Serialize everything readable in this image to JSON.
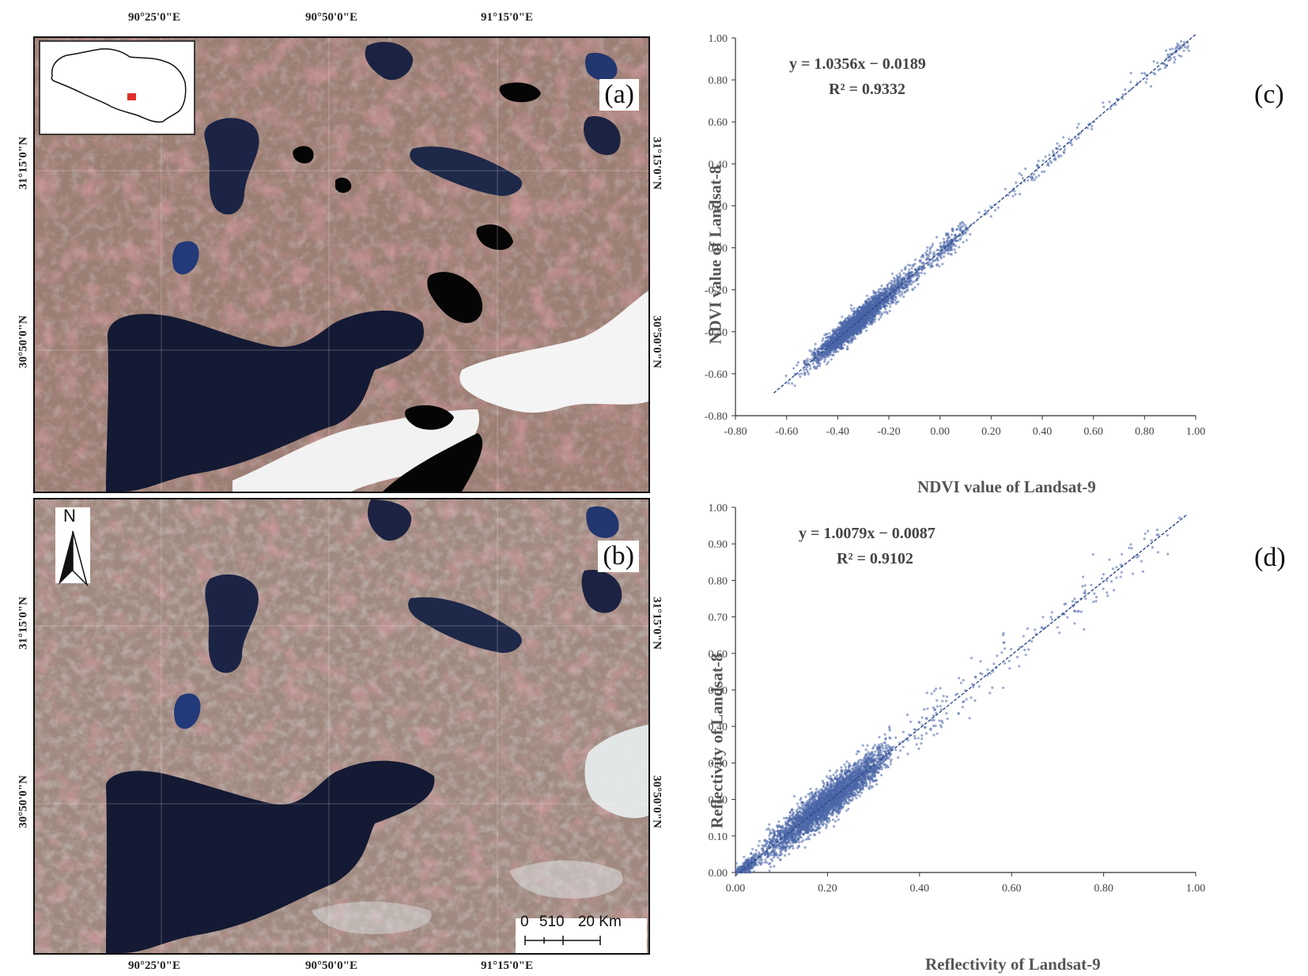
{
  "maps": {
    "top_lon_labels": [
      "90°25'0\"E",
      "90°50'0\"E",
      "91°15'0\"E"
    ],
    "bottom_lon_labels": [
      "90°25'0\"E",
      "90°50'0\"E",
      "91°15'0\"E"
    ],
    "lat_labels_a": [
      "31°15'0\"N",
      "30°50'0\"N"
    ],
    "lat_labels_b": [
      "31°15'0\"N",
      "30°50'0\"N"
    ],
    "panel_a_label": "(a)",
    "panel_b_label": "(b)",
    "north_label": "N",
    "scale_bar": {
      "ticks": [
        "0",
        "5",
        "10",
        "20"
      ],
      "unit": "Km"
    },
    "colors": {
      "water": "#141a33",
      "land": "#9c7f74",
      "vegetation": "#b85a62",
      "cloud": "#f4f4f4",
      "shadow": "#050505",
      "locator_marker": "#e0302a"
    }
  },
  "chart_data": [
    {
      "type": "scatter",
      "panel_label": "(c)",
      "xlabel": "NDVI value  of  Landsat-9",
      "ylabel": "NDVI value  of  Landsat-8",
      "xlim": [
        -0.8,
        1.0
      ],
      "ylim": [
        -0.8,
        1.0
      ],
      "x_ticks": [
        "-0.80",
        "-0.60",
        "-0.40",
        "-0.20",
        "0.00",
        "0.20",
        "0.40",
        "0.60",
        "0.80",
        "1.00"
      ],
      "y_ticks": [
        "-0.80",
        "-0.60",
        "-0.40",
        "-0.20",
        "0.00",
        "0.20",
        "0.40",
        "0.60",
        "0.80",
        "1.00"
      ],
      "equation": "y = 1.0356x − 0.0189",
      "r2": "R² = 0.9332",
      "fit": {
        "slope": 1.0356,
        "intercept": -0.0189,
        "x_range": [
          -0.65,
          1.0
        ]
      },
      "point_color": "#4a66a8",
      "grid": false
    },
    {
      "type": "scatter",
      "panel_label": "(d)",
      "xlabel": "Reflectivity of  Landsat-9",
      "ylabel": "Reflectivity  of  Landsat-8",
      "xlim": [
        0.0,
        1.0
      ],
      "ylim": [
        0.0,
        1.0
      ],
      "x_ticks": [
        "0.00",
        "0.20",
        "0.40",
        "0.60",
        "0.80",
        "1.00"
      ],
      "y_ticks": [
        "0.00",
        "0.10",
        "0.20",
        "0.30",
        "0.40",
        "0.50",
        "0.60",
        "0.70",
        "0.80",
        "0.90",
        "1.00"
      ],
      "equation": "y = 1.0079x − 0.0087",
      "r2": "R² = 0.9102",
      "fit": {
        "slope": 1.0079,
        "intercept": -0.0087,
        "x_range": [
          0.0,
          0.98
        ]
      },
      "point_color": "#4a66a8",
      "grid": false
    }
  ]
}
